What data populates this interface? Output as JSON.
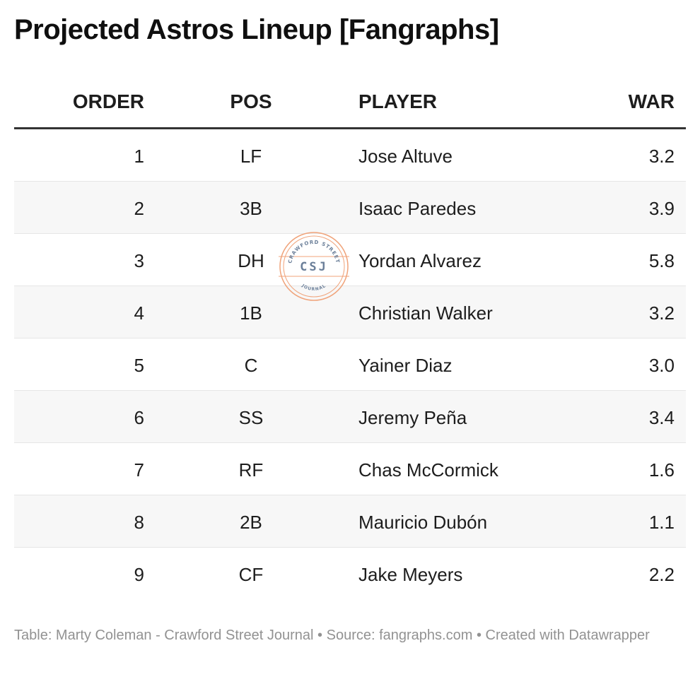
{
  "title": "Projected Astros Lineup [Fangraphs]",
  "columns": {
    "order": "ORDER",
    "pos": "POS",
    "player": "PLAYER",
    "war": "WAR"
  },
  "chart_data": {
    "type": "table",
    "columns": [
      "ORDER",
      "POS",
      "PLAYER",
      "WAR"
    ],
    "rows": [
      {
        "order": "1",
        "pos": "LF",
        "player": "Jose Altuve",
        "war": "3.2"
      },
      {
        "order": "2",
        "pos": "3B",
        "player": "Isaac Paredes",
        "war": "3.9"
      },
      {
        "order": "3",
        "pos": "DH",
        "player": "Yordan Alvarez",
        "war": "5.8"
      },
      {
        "order": "4",
        "pos": "1B",
        "player": "Christian Walker",
        "war": "3.2"
      },
      {
        "order": "5",
        "pos": "C",
        "player": "Yainer Diaz",
        "war": "3.0"
      },
      {
        "order": "6",
        "pos": "SS",
        "player": "Jeremy Peña",
        "war": "3.4"
      },
      {
        "order": "7",
        "pos": "RF",
        "player": "Chas McCormick",
        "war": "1.6"
      },
      {
        "order": "8",
        "pos": "2B",
        "player": "Mauricio Dubón",
        "war": "1.1"
      },
      {
        "order": "9",
        "pos": "CF",
        "player": "Jake Meyers",
        "war": "2.2"
      }
    ]
  },
  "watermark": {
    "top_text": "CRAWFORD STREET",
    "initials": "CSJ",
    "bottom_text": "JOURNAL",
    "ring_color": "#f0a37a",
    "initials_color": "#6b7f99"
  },
  "footer": "Table: Marty Coleman - Crawford Street Journal • Source: fangraphs.com • Created with Datawrapper"
}
